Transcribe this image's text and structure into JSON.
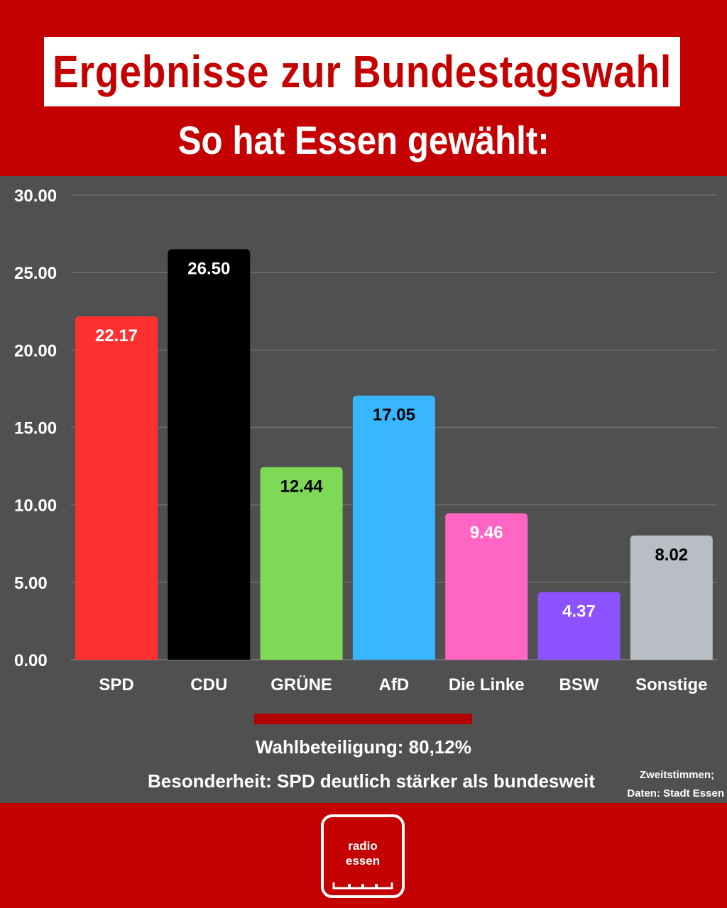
{
  "header": {
    "title": "Ergebnisse zur Bundestagswahl",
    "subtitle": "So hat Essen gewählt:"
  },
  "chart_data": {
    "type": "bar",
    "categories": [
      "SPD",
      "CDU",
      "GRÜNE",
      "AfD",
      "Die Linke",
      "BSW",
      "Sonstige"
    ],
    "values": [
      22.17,
      26.5,
      12.44,
      17.05,
      9.46,
      4.37,
      8.02
    ],
    "value_labels": [
      "22.17",
      "26.50",
      "12.44",
      "17.05",
      "9.46",
      "4.37",
      "8.02"
    ],
    "colors": [
      "#ff3030",
      "#000000",
      "#7ed957",
      "#38b6ff",
      "#ff66c4",
      "#8c52ff",
      "#b9bdc4"
    ],
    "label_colors": [
      "#ffffff",
      "#ffffff",
      "#000000",
      "#000000",
      "#ffffff",
      "#ffffff",
      "#000000"
    ],
    "ylim": [
      0,
      30
    ],
    "yticks": [
      "0.00",
      "5.00",
      "10.00",
      "15.00",
      "20.00",
      "25.00",
      "30.00"
    ],
    "ytick_values": [
      0,
      5,
      10,
      15,
      20,
      25,
      30
    ],
    "grid": true,
    "title": "",
    "xlabel": "",
    "ylabel": ""
  },
  "info": {
    "turnout": "Wahlbeteiligung: 80,12%",
    "note": "Besonderheit: SPD deutlich stärker als bundesweit",
    "source_line1": "Zweitstimmen;",
    "source_line2": "Daten: Stadt Essen"
  },
  "logo": {
    "line1": "radio",
    "line2": "essen"
  },
  "colors": {
    "brand_red": "#c40000",
    "chart_bg": "#505050"
  }
}
